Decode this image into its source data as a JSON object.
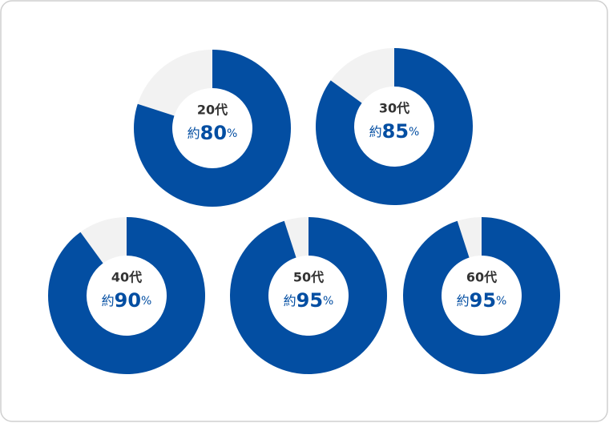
{
  "chart_data": [
    {
      "type": "donut",
      "title": "20代",
      "values": [
        80
      ],
      "value_prefix": "約",
      "value_suffix": "%",
      "color": "#034ea2",
      "track_color": "#f2f2f2"
    },
    {
      "type": "donut",
      "title": "30代",
      "values": [
        85
      ],
      "value_prefix": "約",
      "value_suffix": "%",
      "color": "#034ea2",
      "track_color": "#f2f2f2"
    },
    {
      "type": "donut",
      "title": "40代",
      "values": [
        90
      ],
      "value_prefix": "約",
      "value_suffix": "%",
      "color": "#034ea2",
      "track_color": "#f2f2f2"
    },
    {
      "type": "donut",
      "title": "50代",
      "values": [
        95
      ],
      "value_prefix": "約",
      "value_suffix": "%",
      "color": "#034ea2",
      "track_color": "#f2f2f2"
    },
    {
      "type": "donut",
      "title": "60代",
      "values": [
        95
      ],
      "value_prefix": "約",
      "value_suffix": "%",
      "color": "#034ea2",
      "track_color": "#f2f2f2"
    }
  ]
}
